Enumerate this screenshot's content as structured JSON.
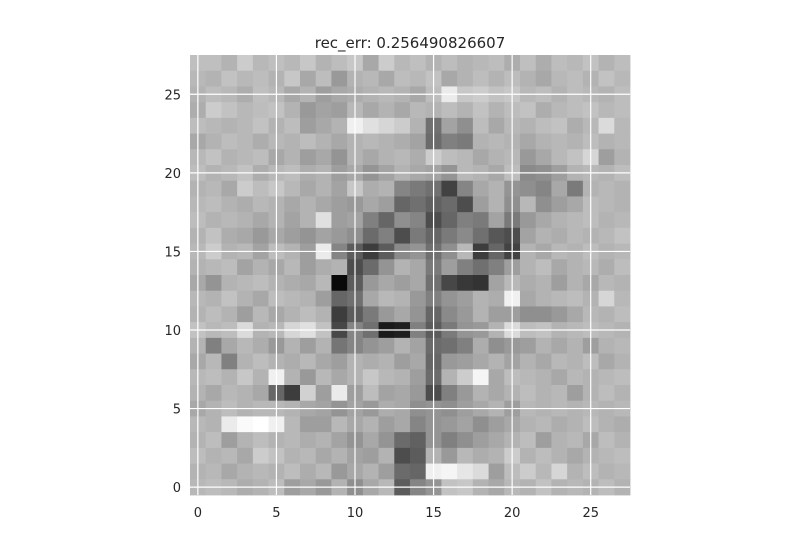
{
  "chart_data": {
    "type": "heatmap",
    "title": "rec_err: 0.256490826607",
    "xlabel": "",
    "ylabel": "",
    "colormap": "gray",
    "xlim": [
      -0.5,
      27.5
    ],
    "ylim": [
      27.5,
      -0.5
    ],
    "x_ticks": [
      0,
      5,
      10,
      15,
      20,
      25
    ],
    "y_ticks": [
      0,
      5,
      10,
      15,
      20,
      25
    ],
    "grid": true,
    "grid_color": "#ffffff",
    "background_color": "#ffffff",
    "rows": 28,
    "cols": 28,
    "value_range": [
      0,
      1
    ],
    "values": [
      [
        0.75,
        0.75,
        0.7,
        0.8,
        0.72,
        0.75,
        0.72,
        0.78,
        0.7,
        0.74,
        0.78,
        0.66,
        0.8,
        0.72,
        0.75,
        0.7,
        0.74,
        0.7,
        0.72,
        0.74,
        0.68,
        0.75,
        0.68,
        0.74,
        0.72,
        0.76,
        0.7,
        0.74
      ],
      [
        0.72,
        0.7,
        0.76,
        0.72,
        0.74,
        0.7,
        0.78,
        0.66,
        0.74,
        0.6,
        0.7,
        0.72,
        0.66,
        0.74,
        0.72,
        0.76,
        0.66,
        0.7,
        0.74,
        0.7,
        0.74,
        0.7,
        0.66,
        0.72,
        0.74,
        0.7,
        0.76,
        0.72
      ],
      [
        0.7,
        0.74,
        0.72,
        0.68,
        0.75,
        0.72,
        0.66,
        0.7,
        0.62,
        0.66,
        0.68,
        0.7,
        0.72,
        0.7,
        0.66,
        0.74,
        0.92,
        0.78,
        0.8,
        0.76,
        0.78,
        0.72,
        0.74,
        0.7,
        0.74,
        0.72,
        0.7,
        0.74
      ],
      [
        0.68,
        0.8,
        0.76,
        0.72,
        0.74,
        0.76,
        0.7,
        0.6,
        0.64,
        0.62,
        0.72,
        0.66,
        0.7,
        0.66,
        0.72,
        0.7,
        0.74,
        0.7,
        0.76,
        0.7,
        0.74,
        0.76,
        0.68,
        0.72,
        0.74,
        0.76,
        0.72,
        0.74
      ],
      [
        0.74,
        0.72,
        0.7,
        0.72,
        0.76,
        0.7,
        0.74,
        0.62,
        0.66,
        0.7,
        0.94,
        0.88,
        0.84,
        0.8,
        0.7,
        0.44,
        0.64,
        0.56,
        0.74,
        0.66,
        0.72,
        0.7,
        0.74,
        0.76,
        0.68,
        0.72,
        0.86,
        0.72
      ],
      [
        0.66,
        0.7,
        0.74,
        0.72,
        0.68,
        0.72,
        0.7,
        0.74,
        0.7,
        0.66,
        0.7,
        0.72,
        0.7,
        0.68,
        0.64,
        0.42,
        0.5,
        0.48,
        0.7,
        0.72,
        0.7,
        0.66,
        0.7,
        0.72,
        0.7,
        0.74,
        0.7,
        0.72
      ],
      [
        0.72,
        0.76,
        0.7,
        0.72,
        0.74,
        0.66,
        0.7,
        0.62,
        0.66,
        0.58,
        0.7,
        0.66,
        0.7,
        0.72,
        0.68,
        0.8,
        0.74,
        0.72,
        0.66,
        0.7,
        0.72,
        0.6,
        0.66,
        0.72,
        0.76,
        0.84,
        0.62,
        0.7
      ],
      [
        0.74,
        0.7,
        0.72,
        0.76,
        0.68,
        0.72,
        0.74,
        0.68,
        0.7,
        0.62,
        0.66,
        0.58,
        0.64,
        0.7,
        0.66,
        0.64,
        0.58,
        0.72,
        0.7,
        0.66,
        0.74,
        0.54,
        0.56,
        0.62,
        0.7,
        0.72,
        0.7,
        0.74
      ],
      [
        0.7,
        0.72,
        0.66,
        0.8,
        0.74,
        0.78,
        0.72,
        0.66,
        0.7,
        0.64,
        0.78,
        0.68,
        0.7,
        0.52,
        0.48,
        0.44,
        0.26,
        0.52,
        0.66,
        0.7,
        0.58,
        0.56,
        0.52,
        0.66,
        0.48,
        0.7,
        0.72,
        0.7
      ],
      [
        0.72,
        0.74,
        0.7,
        0.68,
        0.72,
        0.7,
        0.66,
        0.7,
        0.66,
        0.62,
        0.6,
        0.66,
        0.62,
        0.4,
        0.44,
        0.38,
        0.42,
        0.3,
        0.62,
        0.7,
        0.56,
        0.72,
        0.56,
        0.62,
        0.66,
        0.74,
        0.72,
        0.7
      ],
      [
        0.74,
        0.7,
        0.72,
        0.7,
        0.66,
        0.7,
        0.64,
        0.7,
        0.88,
        0.62,
        0.64,
        0.5,
        0.4,
        0.56,
        0.52,
        0.3,
        0.4,
        0.5,
        0.48,
        0.64,
        0.48,
        0.6,
        0.66,
        0.7,
        0.72,
        0.74,
        0.7,
        0.72
      ],
      [
        0.7,
        0.76,
        0.68,
        0.66,
        0.6,
        0.66,
        0.62,
        0.58,
        0.64,
        0.6,
        0.56,
        0.42,
        0.5,
        0.3,
        0.48,
        0.4,
        0.48,
        0.54,
        0.44,
        0.34,
        0.3,
        0.64,
        0.7,
        0.68,
        0.72,
        0.7,
        0.72,
        0.76
      ],
      [
        0.72,
        0.8,
        0.7,
        0.72,
        0.64,
        0.74,
        0.7,
        0.62,
        0.92,
        0.52,
        0.36,
        0.24,
        0.36,
        0.54,
        0.58,
        0.44,
        0.56,
        0.72,
        0.24,
        0.4,
        0.26,
        0.7,
        0.66,
        0.72,
        0.7,
        0.74,
        0.7,
        0.72
      ],
      [
        0.7,
        0.72,
        0.74,
        0.64,
        0.7,
        0.66,
        0.72,
        0.62,
        0.68,
        0.7,
        0.3,
        0.42,
        0.58,
        0.7,
        0.66,
        0.48,
        0.62,
        0.5,
        0.44,
        0.5,
        0.62,
        0.7,
        0.74,
        0.66,
        0.7,
        0.72,
        0.68,
        0.74
      ],
      [
        0.66,
        0.58,
        0.7,
        0.72,
        0.74,
        0.7,
        0.68,
        0.66,
        0.72,
        0.04,
        0.36,
        0.6,
        0.66,
        0.62,
        0.66,
        0.44,
        0.28,
        0.22,
        0.2,
        0.64,
        0.72,
        0.68,
        0.7,
        0.62,
        0.7,
        0.66,
        0.72,
        0.7
      ],
      [
        0.72,
        0.7,
        0.76,
        0.7,
        0.66,
        0.74,
        0.72,
        0.7,
        0.62,
        0.4,
        0.44,
        0.66,
        0.72,
        0.7,
        0.6,
        0.5,
        0.58,
        0.62,
        0.7,
        0.68,
        0.94,
        0.66,
        0.7,
        0.72,
        0.74,
        0.7,
        0.84,
        0.72
      ],
      [
        0.7,
        0.74,
        0.7,
        0.62,
        0.72,
        0.66,
        0.7,
        0.74,
        0.7,
        0.24,
        0.36,
        0.48,
        0.6,
        0.66,
        0.58,
        0.4,
        0.54,
        0.6,
        0.7,
        0.62,
        0.62,
        0.56,
        0.56,
        0.6,
        0.66,
        0.72,
        0.7,
        0.74
      ],
      [
        0.76,
        0.72,
        0.74,
        0.86,
        0.7,
        0.72,
        0.84,
        0.88,
        0.76,
        0.28,
        0.52,
        0.44,
        0.1,
        0.12,
        0.5,
        0.36,
        0.48,
        0.58,
        0.6,
        0.7,
        0.86,
        0.74,
        0.76,
        0.7,
        0.72,
        0.74,
        0.72,
        0.7
      ],
      [
        0.7,
        0.5,
        0.66,
        0.72,
        0.68,
        0.6,
        0.7,
        0.62,
        0.7,
        0.46,
        0.52,
        0.58,
        0.62,
        0.7,
        0.64,
        0.42,
        0.44,
        0.5,
        0.68,
        0.56,
        0.6,
        0.62,
        0.7,
        0.66,
        0.7,
        0.62,
        0.7,
        0.72
      ],
      [
        0.66,
        0.72,
        0.5,
        0.7,
        0.74,
        0.7,
        0.68,
        0.72,
        0.66,
        0.62,
        0.7,
        0.68,
        0.7,
        0.62,
        0.66,
        0.4,
        0.6,
        0.62,
        0.66,
        0.7,
        0.64,
        0.7,
        0.66,
        0.72,
        0.7,
        0.74,
        0.66,
        0.7
      ],
      [
        0.72,
        0.74,
        0.7,
        0.78,
        0.7,
        0.94,
        0.7,
        0.6,
        0.72,
        0.66,
        0.7,
        0.78,
        0.72,
        0.7,
        0.62,
        0.42,
        0.7,
        0.8,
        0.96,
        0.66,
        0.74,
        0.72,
        0.7,
        0.66,
        0.72,
        0.7,
        0.72,
        0.74
      ],
      [
        0.7,
        0.66,
        0.72,
        0.7,
        0.66,
        0.4,
        0.24,
        0.82,
        0.62,
        0.92,
        0.62,
        0.74,
        0.64,
        0.66,
        0.6,
        0.3,
        0.5,
        0.6,
        0.7,
        0.66,
        0.7,
        0.74,
        0.7,
        0.72,
        0.62,
        0.7,
        0.74,
        0.7
      ],
      [
        0.66,
        0.7,
        0.74,
        0.7,
        0.72,
        0.72,
        0.7,
        0.66,
        0.64,
        0.58,
        0.64,
        0.6,
        0.68,
        0.66,
        0.56,
        0.58,
        0.56,
        0.62,
        0.66,
        0.7,
        0.62,
        0.72,
        0.7,
        0.72,
        0.7,
        0.72,
        0.7,
        0.72
      ],
      [
        0.72,
        0.7,
        0.92,
        0.98,
        1.0,
        0.94,
        0.72,
        0.62,
        0.62,
        0.72,
        0.66,
        0.7,
        0.62,
        0.66,
        0.52,
        0.58,
        0.6,
        0.64,
        0.56,
        0.62,
        0.66,
        0.7,
        0.72,
        0.68,
        0.7,
        0.74,
        0.7,
        0.68
      ],
      [
        0.7,
        0.74,
        0.62,
        0.7,
        0.74,
        0.7,
        0.72,
        0.68,
        0.7,
        0.64,
        0.58,
        0.66,
        0.58,
        0.42,
        0.38,
        0.58,
        0.5,
        0.56,
        0.62,
        0.66,
        0.7,
        0.74,
        0.62,
        0.7,
        0.72,
        0.66,
        0.74,
        0.7
      ],
      [
        0.74,
        0.7,
        0.72,
        0.66,
        0.8,
        0.76,
        0.7,
        0.72,
        0.66,
        0.7,
        0.64,
        0.62,
        0.7,
        0.3,
        0.36,
        0.7,
        0.6,
        0.72,
        0.68,
        0.7,
        0.8,
        0.7,
        0.74,
        0.7,
        0.66,
        0.7,
        0.72,
        0.74
      ],
      [
        0.7,
        0.72,
        0.66,
        0.7,
        0.72,
        0.7,
        0.74,
        0.68,
        0.72,
        0.6,
        0.66,
        0.7,
        0.62,
        0.42,
        0.4,
        0.94,
        0.96,
        0.9,
        0.86,
        0.62,
        0.74,
        0.8,
        0.72,
        0.84,
        0.7,
        0.74,
        0.7,
        0.72
      ],
      [
        0.72,
        0.74,
        0.72,
        0.68,
        0.7,
        0.74,
        0.62,
        0.66,
        0.6,
        0.7,
        0.56,
        0.66,
        0.72,
        0.36,
        0.52,
        0.58,
        0.76,
        0.78,
        0.7,
        0.66,
        0.72,
        0.7,
        0.76,
        0.7,
        0.72,
        0.7,
        0.74,
        0.7
      ]
    ]
  }
}
